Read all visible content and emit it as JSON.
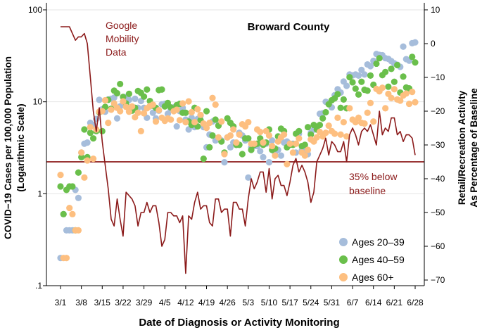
{
  "chart_data": {
    "type": "scatter",
    "title": "Broward County",
    "xlabel": "Date of Diagnosis or Activity Monitoring",
    "ylabel_left": [
      "COVID−19 Cases per 100,000 Population",
      "(Logarithmic Scale)"
    ],
    "ylabel_right": [
      "Retail/Recreation Activity",
      "As Percentage of Baseline"
    ],
    "x_range_days": [
      0,
      119
    ],
    "x_ticks": [
      {
        "label": "3/1",
        "day": 0
      },
      {
        "label": "3/8",
        "day": 7
      },
      {
        "label": "3/15",
        "day": 14
      },
      {
        "label": "3/22",
        "day": 21
      },
      {
        "label": "3/29",
        "day": 28
      },
      {
        "label": "4/5",
        "day": 35
      },
      {
        "label": "4/12",
        "day": 42
      },
      {
        "label": "4/19",
        "day": 49
      },
      {
        "label": "4/26",
        "day": 56
      },
      {
        "label": "5/3",
        "day": 63
      },
      {
        "label": "5/10",
        "day": 70
      },
      {
        "label": "5/17",
        "day": 77
      },
      {
        "label": "5/24",
        "day": 84
      },
      {
        "label": "5/31",
        "day": 91
      },
      {
        "label": "6/7",
        "day": 98
      },
      {
        "label": "6/14",
        "day": 105
      },
      {
        "label": "6/21",
        "day": 112
      },
      {
        "label": "6/28",
        "day": 119
      }
    ],
    "y_left": {
      "scale": "log",
      "range": [
        0.1,
        100
      ],
      "ticks": [
        {
          "label": ".1",
          "value": 0.1
        },
        {
          "label": "1",
          "value": 1
        },
        {
          "label": "10",
          "value": 10
        },
        {
          "label": "100",
          "value": 100
        }
      ]
    },
    "y_right": {
      "range": [
        -70,
        10
      ],
      "ticks": [
        {
          "label": "10",
          "value": 10
        },
        {
          "label": "0",
          "value": 0
        },
        {
          "label": "−10",
          "value": -10
        },
        {
          "label": "−20",
          "value": -20
        },
        {
          "label": "−30",
          "value": -30
        },
        {
          "label": "−40",
          "value": -40
        },
        {
          "label": "−50",
          "value": -50
        },
        {
          "label": "−60",
          "value": -60
        },
        {
          "label": "−70",
          "value": -70
        }
      ]
    },
    "reference_line": {
      "value": -35,
      "label": [
        "35% below",
        "baseline"
      ],
      "color": "#8b1a1a"
    },
    "mobility_series": {
      "name": "Google Mobility Data",
      "label_lines": [
        "Google",
        "Mobility",
        "Data"
      ],
      "color": "#8b1a1a",
      "values": [
        5,
        5,
        5,
        5,
        3,
        1,
        2,
        2,
        3,
        0,
        -10,
        -20,
        -26,
        -19,
        -29,
        -36,
        -43,
        -52,
        -54,
        -46,
        -52,
        -57,
        -44,
        -45,
        -46,
        -48,
        -54,
        -50,
        -50,
        -47,
        -50,
        -48,
        -48,
        -53,
        -60,
        -58,
        -50,
        -50,
        -51,
        -51,
        -53,
        -51,
        -68,
        -51,
        -52,
        -47,
        -44,
        -49,
        -48,
        -48,
        -53,
        -54,
        -46,
        -46,
        -50,
        -49,
        -49,
        -57,
        -47,
        -47,
        -49,
        -49,
        -54,
        -46,
        -40,
        -43,
        -41,
        -38,
        -38,
        -44,
        -37,
        -46,
        -40,
        -39,
        -42,
        -42,
        -45,
        -41,
        -36,
        -34,
        -38,
        -36,
        -38,
        -41,
        -47,
        -44,
        -35,
        -33,
        -31,
        -28,
        -33,
        -29,
        -30,
        -32,
        -32,
        -29,
        -35,
        -27,
        -25,
        -27,
        -30,
        -26,
        -25,
        -26,
        -24,
        -27,
        -30,
        -20,
        -27,
        -25,
        -26,
        -22,
        -22,
        -27,
        -26,
        -29,
        -27,
        -27,
        -28,
        -33
      ]
    },
    "series": [
      {
        "name": "Ages 20–39",
        "color": "#a6bddb",
        "values": [
          0.2,
          0.6,
          0.4,
          0.4,
          0.4,
          1.1,
          0.9,
          2.8,
          3.5,
          3.6,
          5.9,
          5.6,
          6.5,
          10.5,
          8.3,
          7.8,
          10.6,
          10.8,
          11.1,
          6.6,
          8.9,
          9.7,
          11.3,
          10.5,
          8.6,
          10.8,
          8.6,
          10.2,
          8.6,
          6.7,
          8.9,
          7.6,
          6.6,
          8.0,
          9.4,
          9.5,
          7.4,
          8.2,
          8.7,
          5.4,
          7.9,
          8.6,
          6.4,
          5.0,
          6.7,
          5.3,
          6.5,
          7.1,
          5.3,
          3.2,
          4.4,
          6.1,
          3.8,
          5.6,
          3.8,
          2.2,
          4.1,
          3.2,
          3.6,
          3.4,
          4.6,
          4.3,
          3.8,
          1.5,
          3.2,
          3.3,
          3.3,
          2.9,
          2.5,
          3.5,
          2.2,
          3.8,
          2.8,
          3.0,
          2.6,
          3.6,
          3.7,
          3.5,
          3.5,
          2.8,
          4.5,
          3.0,
          3.0,
          2.7,
          4.6,
          5.0,
          5.0,
          7.4,
          7.5,
          10.0,
          9.5,
          8.7,
          11.8,
          13.7,
          12.6,
          16.6,
          14.9,
          19.8,
          19.4,
          19.8,
          19.3,
          22.2,
          19.8,
          25.5,
          24.4,
          27.9,
          33.1,
          32.4,
          32.1,
          29.8,
          29.3,
          27.7,
          26.2,
          25.3,
          24.0,
          39.8,
          29.1,
          28.0,
          43.4,
          44.3
        ]
      },
      {
        "name": "Ages 40–59",
        "color": "#6abf4b",
        "values": [
          1.2,
          0.6,
          1.1,
          1.2,
          1.2,
          0.4,
          1.7,
          2.5,
          5.0,
          2.5,
          4.6,
          4.0,
          4.8,
          7.7,
          4.8,
          8.8,
          10.5,
          8.4,
          13.2,
          12.4,
          15.6,
          11.3,
          9.6,
          12.2,
          8.0,
          8.6,
          13.1,
          12.5,
          11.4,
          13.6,
          10.2,
          9.1,
          8.6,
          13.4,
          13.6,
          8.9,
          9.7,
          8.7,
          8.4,
          9.2,
          9.5,
          7.6,
          7.6,
          6.1,
          5.6,
          8.6,
          5.4,
          6.3,
          2.4,
          7.9,
          3.2,
          4.3,
          6.4,
          5.5,
          3.7,
          2.8,
          6.6,
          5.9,
          5.4,
          3.4,
          3.4,
          2.7,
          4.0,
          4.0,
          3.0,
          3.4,
          3.5,
          4.0,
          3.4,
          3.6,
          5.0,
          3.0,
          3.1,
          4.2,
          5.1,
          4.8,
          3.2,
          3.4,
          3.4,
          4.5,
          4.8,
          3.3,
          3.4,
          5.3,
          4.4,
          5.6,
          5.0,
          5.6,
          6.6,
          7.7,
          9.4,
          10.4,
          10.9,
          12.1,
          8.6,
          10.6,
          8.5,
          18.5,
          16.3,
          13.9,
          12.0,
          16.5,
          13.5,
          13.2,
          19.3,
          15.3,
          26.0,
          29.8,
          19.5,
          21.1,
          14.6,
          22.8,
          16.5,
          25.1,
          12.6,
          18.8,
          14.3,
          14.0,
          30.8,
          26.8
        ]
      },
      {
        "name": "Ages 60+",
        "color": "#fdbf80",
        "values": [
          1.6,
          0.2,
          0.2,
          0.7,
          0.6,
          0.4,
          0.4,
          2.8,
          1.5,
          2.3,
          5.3,
          2.4,
          5.0,
          7.8,
          7.9,
          10.4,
          5.9,
          8.2,
          9.6,
          8.6,
          7.9,
          10.1,
          8.8,
          7.8,
          8.9,
          6.8,
          7.6,
          4.8,
          7.5,
          8.5,
          9.0,
          9.3,
          6.1,
          8.1,
          6.7,
          6.2,
          6.6,
          6.4,
          7.9,
          8.2,
          6.3,
          9.6,
          6.0,
          10.1,
          7.7,
          6.0,
          8.3,
          7.2,
          5.8,
          5.2,
          5.9,
          11.0,
          9.3,
          4.1,
          6.1,
          2.7,
          4.1,
          4.3,
          5.0,
          3.6,
          4.4,
          5.7,
          5.4,
          6.0,
          3.5,
          3.5,
          5.0,
          4.7,
          3.6,
          4.8,
          4.3,
          3.3,
          2.6,
          3.7,
          4.1,
          4.4,
          2.1,
          3.5,
          2.8,
          3.5,
          4.0,
          2.8,
          2.6,
          3.0,
          3.9,
          3.7,
          4.1,
          4.7,
          4.2,
          4.6,
          5.5,
          4.8,
          4.5,
          6.7,
          4.4,
          6.0,
          4.2,
          8.5,
          6.4,
          6.0,
          6.7,
          5.9,
          5.8,
          7.6,
          9.7,
          6.1,
          13.8,
          13.0,
          14.2,
          8.5,
          12.2,
          11.0,
          13.7,
          10.6,
          10.3,
          11.7,
          12.3,
          9.5,
          12.8,
          9.9
        ]
      }
    ]
  }
}
